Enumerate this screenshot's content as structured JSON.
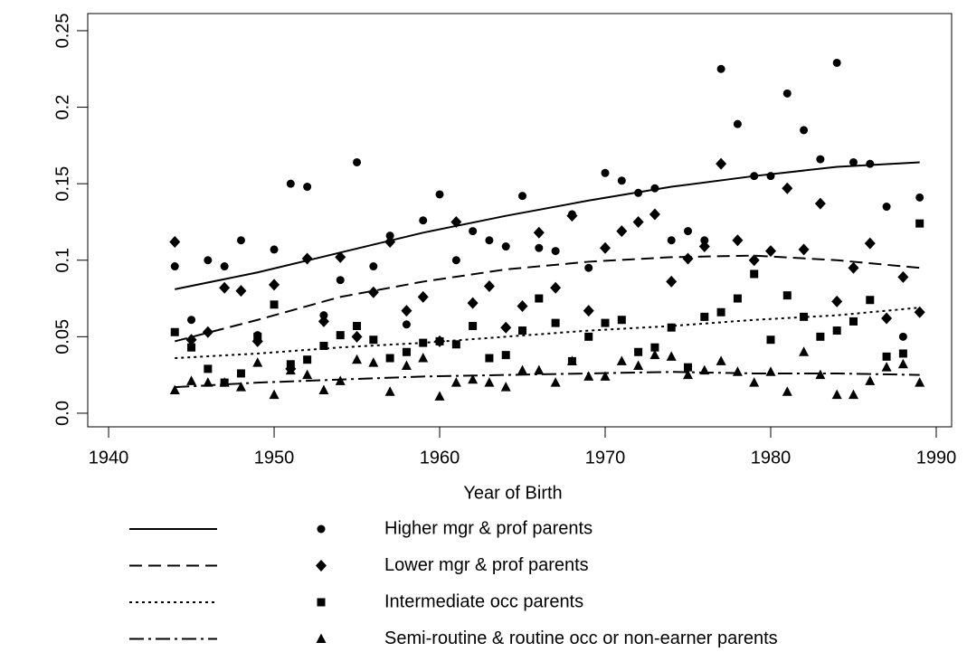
{
  "chart_data": {
    "type": "scatter",
    "x_label": "Year of Birth",
    "color": "#000000",
    "xlim": [
      1938.74,
      1990.93
    ],
    "ylim": [
      -0.0089,
      0.2612
    ],
    "xticks": [
      1940,
      1950,
      1960,
      1970,
      1980,
      1990
    ],
    "yticks": [
      {
        "value": 0,
        "label": "0.0"
      },
      0.05,
      0.1,
      0.15,
      0.2,
      0.25
    ],
    "x": [
      1944,
      1945,
      1946,
      1947,
      1948,
      1949,
      1950,
      1951,
      1952,
      1953,
      1954,
      1955,
      1956,
      1957,
      1958,
      1959,
      1960,
      1961,
      1962,
      1963,
      1964,
      1965,
      1966,
      1967,
      1968,
      1969,
      1970,
      1971,
      1972,
      1973,
      1974,
      1975,
      1976,
      1977,
      1978,
      1979,
      1980,
      1981,
      1982,
      1983,
      1984,
      1985,
      1986,
      1987,
      1988,
      1989
    ],
    "fit_x": [
      1944,
      1949,
      1954,
      1959,
      1964,
      1969,
      1974,
      1979,
      1984,
      1989
    ],
    "series": [
      {
        "name": "Higher mgr & prof parents",
        "marker": "circle",
        "dash": "solid",
        "values": [
          0.096,
          0.061,
          0.1,
          0.096,
          0.113,
          0.051,
          0.107,
          0.15,
          0.148,
          0.064,
          0.087,
          0.164,
          0.096,
          0.116,
          0.058,
          0.126,
          0.143,
          0.1,
          0.119,
          0.113,
          0.109,
          0.142,
          0.108,
          0.106,
          0.13,
          0.095,
          0.157,
          0.152,
          0.144,
          0.147,
          0.113,
          0.119,
          0.113,
          0.225,
          0.189,
          0.155,
          0.155,
          0.209,
          0.185,
          0.166,
          0.229,
          0.164,
          0.163,
          0.135,
          0.05,
          0.141
        ],
        "fit": [
          0.081,
          0.092,
          0.105,
          0.118,
          0.129,
          0.139,
          0.148,
          0.155,
          0.161,
          0.164
        ]
      },
      {
        "name": "Lower mgr & prof parents",
        "marker": "diamond",
        "dash": "dashed",
        "values": [
          0.112,
          0.048,
          0.053,
          0.082,
          0.08,
          0.047,
          0.084,
          0.029,
          0.101,
          0.06,
          0.102,
          0.05,
          0.079,
          0.112,
          0.067,
          0.076,
          0.047,
          0.125,
          0.072,
          0.083,
          0.056,
          0.07,
          0.118,
          0.082,
          0.129,
          0.067,
          0.108,
          0.119,
          0.125,
          0.13,
          0.086,
          0.101,
          0.109,
          0.163,
          0.113,
          0.1,
          0.106,
          0.147,
          0.107,
          0.137,
          0.073,
          0.095,
          0.111,
          0.062,
          0.089,
          0.066
        ],
        "fit": [
          0.047,
          0.061,
          0.076,
          0.086,
          0.094,
          0.099,
          0.102,
          0.103,
          0.1,
          0.095
        ]
      },
      {
        "name": "Intermediate occ parents",
        "marker": "square",
        "dash": "dotted",
        "values": [
          0.053,
          0.043,
          0.029,
          0.02,
          0.026,
          0.05,
          0.071,
          0.032,
          0.035,
          0.044,
          0.051,
          0.057,
          0.048,
          0.036,
          0.04,
          0.046,
          0.047,
          0.045,
          0.057,
          0.036,
          0.038,
          0.054,
          0.075,
          0.059,
          0.034,
          0.05,
          0.059,
          0.061,
          0.04,
          0.043,
          0.056,
          0.03,
          0.063,
          0.066,
          0.075,
          0.091,
          0.048,
          0.077,
          0.063,
          0.05,
          0.054,
          0.06,
          0.074,
          0.037,
          0.039,
          0.124
        ],
        "fit": [
          0.036,
          0.039,
          0.043,
          0.046,
          0.05,
          0.054,
          0.057,
          0.061,
          0.064,
          0.069
        ]
      },
      {
        "name": "Semi-routine & routine occ or non-earner parents",
        "marker": "triangle",
        "dash": "dashdot",
        "values": [
          0.015,
          0.021,
          0.02,
          0.02,
          0.017,
          0.033,
          0.012,
          0.028,
          0.025,
          0.015,
          0.021,
          0.035,
          0.033,
          0.014,
          0.031,
          0.036,
          0.011,
          0.02,
          0.022,
          0.02,
          0.017,
          0.028,
          0.028,
          0.02,
          0.034,
          0.024,
          0.024,
          0.034,
          0.031,
          0.038,
          0.037,
          0.025,
          0.028,
          0.034,
          0.027,
          0.02,
          0.027,
          0.014,
          0.04,
          0.025,
          0.012,
          0.012,
          0.021,
          0.03,
          0.032,
          0.02
        ],
        "fit": [
          0.017,
          0.02,
          0.022,
          0.024,
          0.025,
          0.026,
          0.027,
          0.026,
          0.026,
          0.025
        ]
      }
    ]
  }
}
